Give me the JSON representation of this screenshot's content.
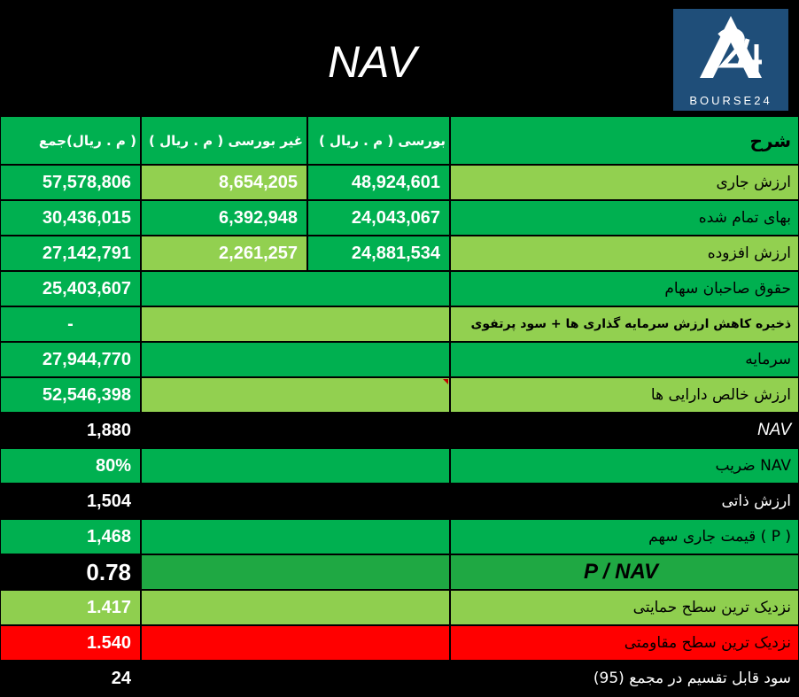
{
  "title": "NAV",
  "logo": {
    "text": "BOURSE24",
    "icon": "bourse24-logo-icon"
  },
  "colors": {
    "header_green": "#00b050",
    "light_green": "#92d050",
    "red": "#ff0000",
    "black": "#000000",
    "logo_blue": "#1f4e79"
  },
  "header": {
    "total": "( م . ریال)جمع",
    "otc": "غیر بورسی ( م . ریال )",
    "exchange": "بورسی ( م . ریال )",
    "description": "شرح"
  },
  "rows": {
    "current_value": {
      "label": "ارزش جاری",
      "total": "57,578,806",
      "otc": "8,654,205",
      "exchange": "48,924,601"
    },
    "cost_value": {
      "label": "بهای تمام شده",
      "total": "30,436,015",
      "otc": "6,392,948",
      "exchange": "24,043,067"
    },
    "added_value": {
      "label": "ارزش افزوده",
      "total": "27,142,791",
      "otc": "2,261,257",
      "exchange": "24,881,534"
    },
    "equity": {
      "label": "حقوق صاحبان سهام",
      "total": "25,403,607"
    },
    "reserve": {
      "label": "ذخیره کاهش ارزش سرمایه گذاری ها + سود پرتفوی",
      "total": "-"
    },
    "capital": {
      "label": "سرمایه",
      "total": "27,944,770"
    },
    "net_asset_value": {
      "label": "ارزش خالص دارایی ها",
      "total": "52,546,398"
    },
    "nav": {
      "label": "NAV",
      "total": "1,880"
    },
    "nav_coef": {
      "label": "NAV ضریب",
      "total": "80%"
    },
    "intrinsic": {
      "label": "ارزش ذاتی",
      "total": "1,504"
    },
    "price": {
      "label": "( P ) قیمت جاری سهم",
      "total": "1,468"
    },
    "p_nav": {
      "label": "P / NAV",
      "total": "0.78"
    },
    "support": {
      "label": "نزدیک ترین سطح حمایتی",
      "total": "1.417"
    },
    "resistance": {
      "label": "نزدیک ترین سطح مقاومتی",
      "total": "1.540"
    },
    "dividend": {
      "label": "سود قابل تقسیم در مجمع (95)",
      "total": "24"
    }
  }
}
